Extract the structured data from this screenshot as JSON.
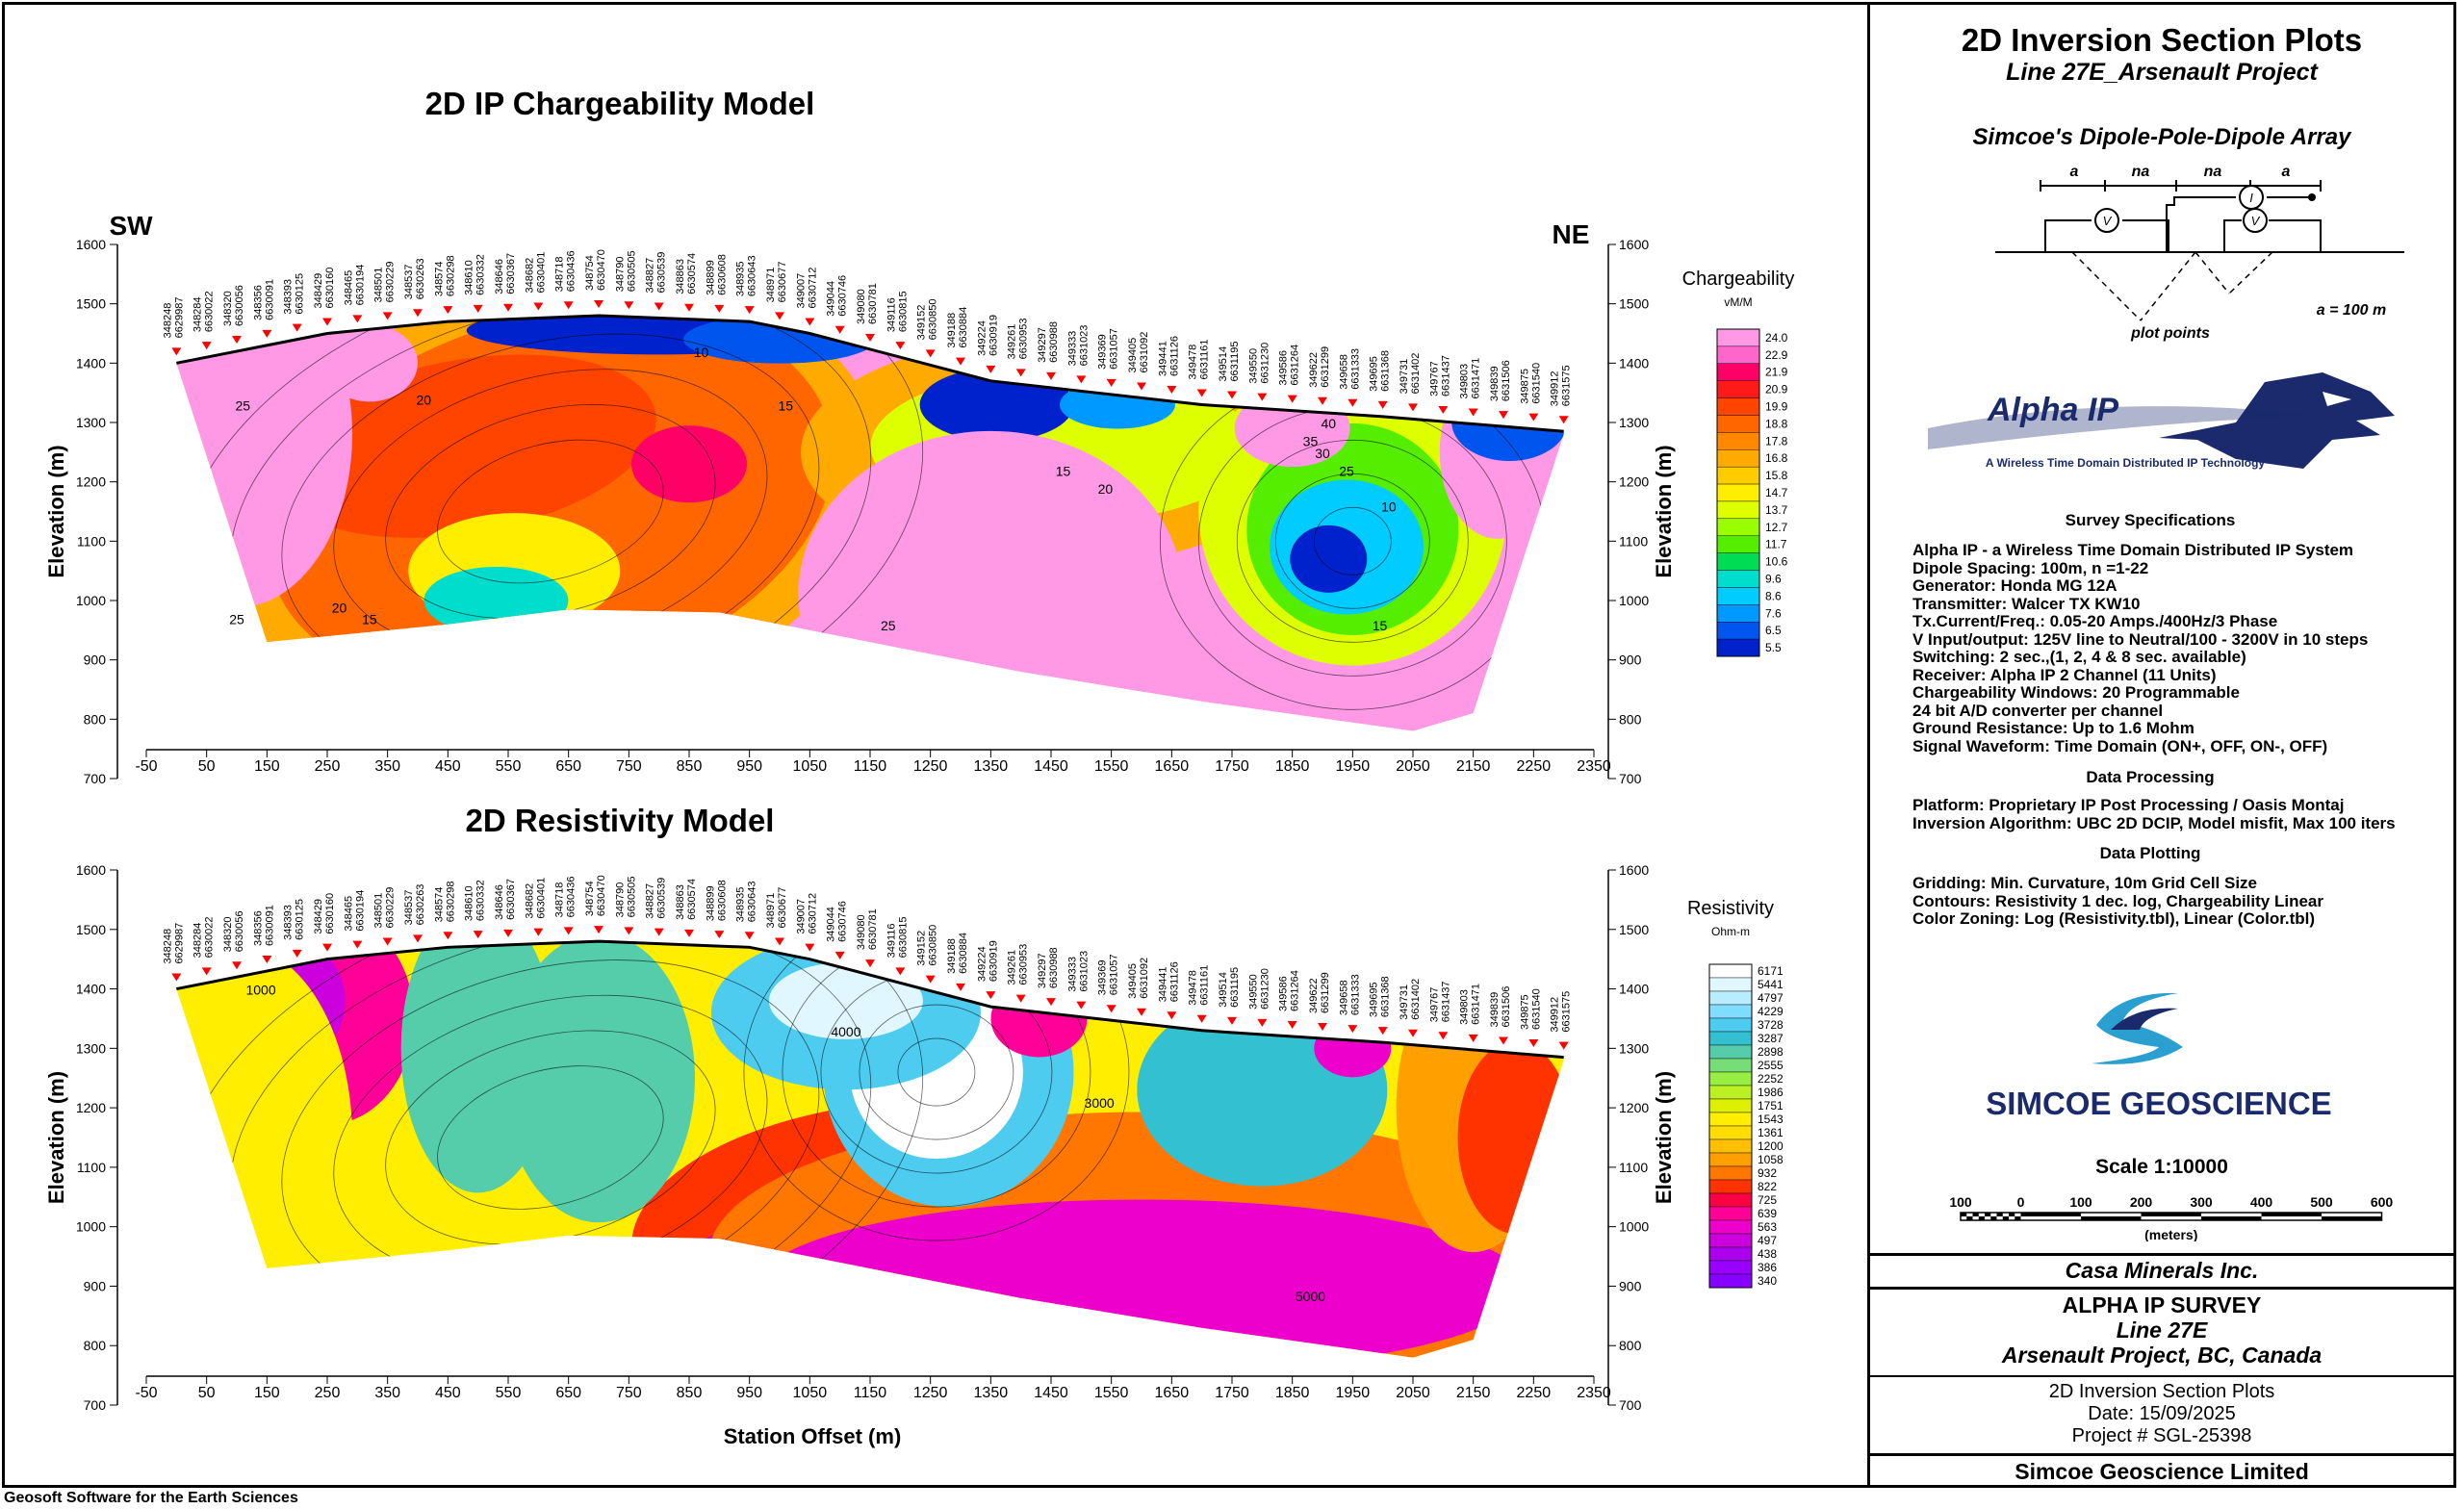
{
  "colors": {
    "line": "#000000",
    "station_marker": "#ff0000",
    "background": "#ffffff",
    "accent_navy": "#1a2a6c",
    "accent_cyan": "#2a9fd0"
  },
  "stations": [
    {
      "e": "348248",
      "n": "6629987"
    },
    {
      "e": "348284",
      "n": "6630022"
    },
    {
      "e": "348320",
      "n": "6630056"
    },
    {
      "e": "348356",
      "n": "6630091"
    },
    {
      "e": "348393",
      "n": "6630125"
    },
    {
      "e": "348429",
      "n": "6630160"
    },
    {
      "e": "348465",
      "n": "6630194"
    },
    {
      "e": "348501",
      "n": "6630229"
    },
    {
      "e": "348537",
      "n": "6630263"
    },
    {
      "e": "348574",
      "n": "6630298"
    },
    {
      "e": "348610",
      "n": "6630332"
    },
    {
      "e": "348646",
      "n": "6630367"
    },
    {
      "e": "348682",
      "n": "6630401"
    },
    {
      "e": "348718",
      "n": "6630436"
    },
    {
      "e": "348754",
      "n": "6630470"
    },
    {
      "e": "348790",
      "n": "6630505"
    },
    {
      "e": "348827",
      "n": "6630539"
    },
    {
      "e": "348863",
      "n": "6630574"
    },
    {
      "e": "348899",
      "n": "6630608"
    },
    {
      "e": "348935",
      "n": "6630643"
    },
    {
      "e": "348971",
      "n": "6630677"
    },
    {
      "e": "349007",
      "n": "6630712"
    },
    {
      "e": "349044",
      "n": "6630746"
    },
    {
      "e": "349080",
      "n": "6630781"
    },
    {
      "e": "349116",
      "n": "6630815"
    },
    {
      "e": "349152",
      "n": "6630850"
    },
    {
      "e": "349188",
      "n": "6630884"
    },
    {
      "e": "349224",
      "n": "6630919"
    },
    {
      "e": "349261",
      "n": "6630953"
    },
    {
      "e": "349297",
      "n": "6630988"
    },
    {
      "e": "349333",
      "n": "6631023"
    },
    {
      "e": "349369",
      "n": "6631057"
    },
    {
      "e": "349405",
      "n": "6631092"
    },
    {
      "e": "349441",
      "n": "6631126"
    },
    {
      "e": "349478",
      "n": "6631161"
    },
    {
      "e": "349514",
      "n": "6631195"
    },
    {
      "e": "349550",
      "n": "6631230"
    },
    {
      "e": "349586",
      "n": "6631264"
    },
    {
      "e": "349622",
      "n": "6631299"
    },
    {
      "e": "349658",
      "n": "6631333"
    },
    {
      "e": "349695",
      "n": "6631368"
    },
    {
      "e": "349731",
      "n": "6631402"
    },
    {
      "e": "349767",
      "n": "6631437"
    },
    {
      "e": "349803",
      "n": "6631471"
    },
    {
      "e": "349839",
      "n": "6631506"
    },
    {
      "e": "349875",
      "n": "6631540"
    },
    {
      "e": "349912",
      "n": "6631575"
    }
  ],
  "chart_data": [
    {
      "type": "heatmap",
      "title": "2D IP Chargeability Model",
      "xlabel": "",
      "ylabel": "Elevation (m)",
      "left_label": "SW",
      "right_label": "NE",
      "xlim": [
        -50,
        2350
      ],
      "ylim": [
        700,
        1600
      ],
      "x_ticks": [
        -50,
        50,
        150,
        250,
        350,
        450,
        550,
        650,
        750,
        850,
        950,
        1050,
        1150,
        1250,
        1350,
        1450,
        1550,
        1650,
        1750,
        1850,
        1950,
        2050,
        2150,
        2250,
        2350
      ],
      "y_ticks": [
        700,
        800,
        900,
        1000,
        1100,
        1200,
        1300,
        1400,
        1500,
        1600
      ],
      "topography": [
        [
          0,
          1400
        ],
        [
          250,
          1450
        ],
        [
          450,
          1470
        ],
        [
          700,
          1480
        ],
        [
          950,
          1470
        ],
        [
          1050,
          1450
        ],
        [
          1350,
          1370
        ],
        [
          1700,
          1330
        ],
        [
          2000,
          1310
        ],
        [
          2300,
          1285
        ]
      ],
      "model_bottom": [
        [
          0,
          1400
        ],
        [
          150,
          930
        ],
        [
          450,
          960
        ],
        [
          650,
          985
        ],
        [
          900,
          980
        ],
        [
          1100,
          940
        ],
        [
          1400,
          880
        ],
        [
          1700,
          830
        ],
        [
          2050,
          780
        ],
        [
          2150,
          810
        ],
        [
          2300,
          1280
        ]
      ],
      "colorbar": {
        "title": "Chargeability",
        "unit": "vM/M",
        "scale": "linear",
        "ticks": [
          24.0,
          22.9,
          21.9,
          20.9,
          19.9,
          18.8,
          17.8,
          16.8,
          15.8,
          14.7,
          13.7,
          12.7,
          11.7,
          10.6,
          9.6,
          8.6,
          7.6,
          6.5,
          5.5
        ],
        "colors": [
          "#ff99e6",
          "#ff66cc",
          "#ff0066",
          "#ff1a1a",
          "#ff4400",
          "#ff6600",
          "#ff8800",
          "#ffaa00",
          "#ffcc00",
          "#ffee00",
          "#ddff00",
          "#99ff00",
          "#55ee00",
          "#00dd55",
          "#00ddcc",
          "#00ccff",
          "#0099ff",
          "#0055ee",
          "#0022cc"
        ]
      },
      "contour_labels": [
        {
          "x": 110,
          "y": 1320,
          "text": "25"
        },
        {
          "x": 410,
          "y": 1330,
          "text": "20"
        },
        {
          "x": 870,
          "y": 1410,
          "text": "10"
        },
        {
          "x": 1010,
          "y": 1320,
          "text": "15"
        },
        {
          "x": 1470,
          "y": 1210,
          "text": "15"
        },
        {
          "x": 1540,
          "y": 1180,
          "text": "20"
        },
        {
          "x": 1910,
          "y": 1290,
          "text": "40"
        },
        {
          "x": 1880,
          "y": 1260,
          "text": "35"
        },
        {
          "x": 1900,
          "y": 1240,
          "text": "30"
        },
        {
          "x": 1940,
          "y": 1210,
          "text": "25"
        },
        {
          "x": 2010,
          "y": 1150,
          "text": "10"
        },
        {
          "x": 1995,
          "y": 950,
          "text": "15"
        },
        {
          "x": 100,
          "y": 960,
          "text": "25"
        },
        {
          "x": 270,
          "y": 980,
          "text": "20"
        },
        {
          "x": 320,
          "y": 960,
          "text": "15"
        },
        {
          "x": 1180,
          "y": 950,
          "text": "25"
        }
      ]
    },
    {
      "type": "heatmap",
      "title": "2D Resistivity Model",
      "xlabel": "Station Offset (m)",
      "ylabel": "Elevation (m)",
      "xlim": [
        -50,
        2350
      ],
      "ylim": [
        700,
        1600
      ],
      "x_ticks": [
        -50,
        50,
        150,
        250,
        350,
        450,
        550,
        650,
        750,
        850,
        950,
        1050,
        1150,
        1250,
        1350,
        1450,
        1550,
        1650,
        1750,
        1850,
        1950,
        2050,
        2150,
        2250,
        2350
      ],
      "y_ticks": [
        700,
        800,
        900,
        1000,
        1100,
        1200,
        1300,
        1400,
        1500,
        1600
      ],
      "topography": [
        [
          0,
          1400
        ],
        [
          250,
          1450
        ],
        [
          450,
          1470
        ],
        [
          700,
          1480
        ],
        [
          950,
          1470
        ],
        [
          1050,
          1450
        ],
        [
          1350,
          1370
        ],
        [
          1700,
          1330
        ],
        [
          2000,
          1310
        ],
        [
          2300,
          1285
        ]
      ],
      "model_bottom": [
        [
          0,
          1400
        ],
        [
          150,
          930
        ],
        [
          450,
          960
        ],
        [
          650,
          985
        ],
        [
          900,
          980
        ],
        [
          1100,
          940
        ],
        [
          1400,
          880
        ],
        [
          1700,
          830
        ],
        [
          2050,
          780
        ],
        [
          2150,
          810
        ],
        [
          2300,
          1280
        ]
      ],
      "colorbar": {
        "title": "Resistivity",
        "unit": "Ohm-m",
        "scale": "log",
        "ticks": [
          6171,
          5441,
          4797,
          4229,
          3728,
          3287,
          2898,
          2555,
          2252,
          1986,
          1751,
          1543,
          1361,
          1200,
          1058,
          932,
          822,
          725,
          639,
          563,
          497,
          438,
          386,
          340
        ],
        "colors": [
          "#ffffff",
          "#e0f7ff",
          "#b8ecff",
          "#80ddff",
          "#4dccf0",
          "#33c0d0",
          "#55ccaa",
          "#77dd77",
          "#99ee44",
          "#bbf022",
          "#ddf000",
          "#ffee00",
          "#ffdd00",
          "#ffc000",
          "#ffa000",
          "#ff7700",
          "#ff3300",
          "#ff0044",
          "#ff0099",
          "#ee00cc",
          "#cc00dd",
          "#aa00ee",
          "#9900ff",
          "#8800ff"
        ]
      },
      "contour_labels": [
        {
          "x": 1110,
          "y": 1320,
          "text": "4000"
        },
        {
          "x": 1530,
          "y": 1200,
          "text": "3000"
        },
        {
          "x": 1880,
          "y": 875,
          "text": "5000"
        },
        {
          "x": 140,
          "y": 1390,
          "text": "1000"
        }
      ]
    }
  ],
  "right_panel": {
    "title": "2D Inversion Section Plots",
    "subtitle": "Line 27E_Arsenault Project",
    "array_title": "Simcoe's Dipole-Pole-Dipole Array",
    "array_labels": [
      "a",
      "na",
      "na",
      "a"
    ],
    "plot_points_label": "plot points",
    "spacing_label": "a = 100 m",
    "alpha_logo_text": "Alpha IP",
    "alpha_logo_tagline": "A Wireless Time Domain Distributed IP Technology",
    "survey_specs_heading": "Survey Specifications",
    "survey_specs": [
      "Alpha IP - a Wireless  Time Domain Distributed IP System",
      "Dipole Spacing: 100m, n =1-22",
      "Generator: Honda MG 12A",
      "Transmitter: Walcer TX KW10",
      "Tx.Current/Freq.: 0.05-20 Amps./400Hz/3 Phase",
      "V Input/output: 125V line to Neutral/100 - 3200V in 10 steps",
      "Switching: 2 sec.,(1, 2, 4 & 8 sec. available)",
      "Receiver: Alpha IP 2 Channel (11 Units)",
      "Chargeability Windows: 20 Programmable",
      "24 bit A/D converter per channel",
      "Ground Resistance: Up to 1.6 Mohm",
      "Signal Waveform: Time Domain (ON+, OFF, ON-, OFF)"
    ],
    "data_processing_heading": "Data Processing",
    "data_processing": [
      "Platform: Proprietary IP Post Processing / Oasis Montaj",
      "Inversion Algorithm: UBC 2D DCIP, Model misfit, Max 100 iters"
    ],
    "data_plotting_heading": "Data Plotting",
    "data_plotting": [
      "Gridding: Min. Curvature, 10m Grid Cell Size",
      "Contours: Resistivity 1 dec. log, Chargeability Linear",
      "Color Zoning: Log (Resistivity.tbl), Linear (Color.tbl)"
    ],
    "simcoe_logo_text": "SIMCOE GEOSCIENCE",
    "scale_label": "Scale 1:10000",
    "scale_ticks": [
      "100",
      "0",
      "100",
      "200",
      "300",
      "400",
      "500",
      "600"
    ],
    "scale_unit": "(meters)",
    "client": "Casa Minerals Inc.",
    "survey_name": "ALPHA IP SURVEY",
    "line": "Line 27E",
    "project": "Arsenault Project, BC, Canada",
    "plot_type": "2D Inversion Section Plots",
    "date": "Date: 15/09/2025",
    "project_number": "Project # SGL-25398",
    "company": "Simcoe Geoscience Limited"
  },
  "footer": "Geosoft Software for the Earth Sciences"
}
